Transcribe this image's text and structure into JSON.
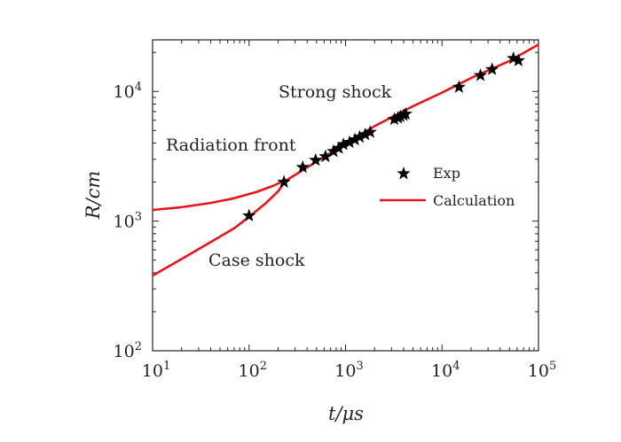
{
  "chart_data": {
    "type": "line",
    "xlabel": "t/μs",
    "ylabel": "R/cm",
    "xscale": "log",
    "yscale": "log",
    "xlim": [
      10,
      100000
    ],
    "ylim": [
      100,
      25000
    ],
    "grid": false,
    "legend_position": "right",
    "x_tick_labels": [
      {
        "base": "10",
        "exp": "1"
      },
      {
        "base": "10",
        "exp": "2"
      },
      {
        "base": "10",
        "exp": "3"
      },
      {
        "base": "10",
        "exp": "4"
      },
      {
        "base": "10",
        "exp": "5"
      }
    ],
    "y_tick_labels": [
      {
        "base": "10",
        "exp": "2"
      },
      {
        "base": "10",
        "exp": "3"
      },
      {
        "base": "10",
        "exp": "4"
      }
    ],
    "annotations": [
      "Strong shock",
      "Radiation front",
      "Case shock"
    ],
    "legend": [
      "Exp",
      "Calculation"
    ],
    "colors": {
      "calculation": "#e8141c",
      "exp": "#000000",
      "axis": "#222222"
    },
    "series": [
      {
        "name": "Exp",
        "style": "star",
        "points": [
          [
            100,
            1100
          ],
          [
            230,
            2000
          ],
          [
            360,
            2600
          ],
          [
            490,
            2950
          ],
          [
            620,
            3150
          ],
          [
            750,
            3450
          ],
          [
            850,
            3650
          ],
          [
            950,
            3900
          ],
          [
            1100,
            4050
          ],
          [
            1250,
            4250
          ],
          [
            1400,
            4450
          ],
          [
            1600,
            4650
          ],
          [
            1800,
            4850
          ],
          [
            3200,
            6100
          ],
          [
            3500,
            6250
          ],
          [
            3700,
            6400
          ],
          [
            4000,
            6550
          ],
          [
            4200,
            6700
          ],
          [
            15000,
            10800
          ],
          [
            25000,
            13300
          ],
          [
            33000,
            14800
          ],
          [
            55000,
            18000
          ],
          [
            62000,
            17300
          ]
        ]
      },
      {
        "name": "Calculation",
        "style": "line",
        "segments": [
          {
            "label": "Radiation front",
            "points": [
              [
                10,
                1220
              ],
              [
                20,
                1280
              ],
              [
                40,
                1380
              ],
              [
                70,
                1500
              ],
              [
                120,
                1680
              ],
              [
                180,
                1880
              ],
              [
                230,
                2050
              ]
            ]
          },
          {
            "label": "Case shock",
            "points": [
              [
                10,
                380
              ],
              [
                20,
                510
              ],
              [
                40,
                690
              ],
              [
                70,
                880
              ],
              [
                100,
                1080
              ],
              [
                150,
                1380
              ],
              [
                200,
                1700
              ],
              [
                240,
                2050
              ]
            ]
          },
          {
            "label": "Strong shock",
            "points": [
              [
                240,
                2050
              ],
              [
                500,
                2880
              ],
              [
                1000,
                3950
              ],
              [
                2000,
                5400
              ],
              [
                5000,
                7700
              ],
              [
                10000,
                9800
              ],
              [
                20000,
                12700
              ],
              [
                50000,
                17200
              ],
              [
                100000,
                23000
              ]
            ]
          }
        ]
      }
    ]
  }
}
